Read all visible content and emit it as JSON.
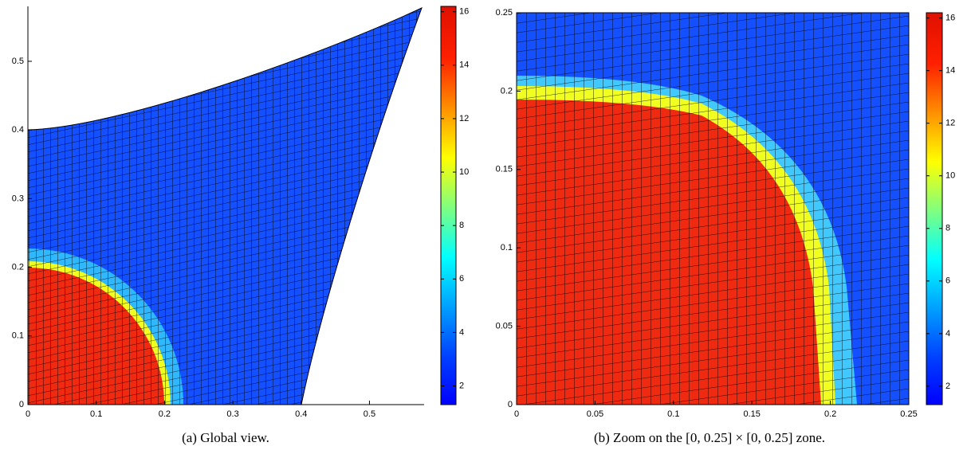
{
  "figures": [
    {
      "caption": "(a) Global view.",
      "xlim": [
        0,
        0.58
      ],
      "ylim": [
        0,
        0.58
      ],
      "xticks": [
        0,
        0.1,
        0.2,
        0.3,
        0.4,
        0.5
      ],
      "yticks": [
        0,
        0.1,
        0.2,
        0.3,
        0.4,
        0.5
      ],
      "colorbar": {
        "lim": [
          1.3,
          16.2
        ],
        "ticks": [
          2,
          4,
          6,
          8,
          10,
          12,
          14,
          16
        ]
      }
    },
    {
      "caption": "(b) Zoom on the [0, 0.25] × [0, 0.25] zone.",
      "xlim": [
        0,
        0.25
      ],
      "ylim": [
        0,
        0.25
      ],
      "xticks": [
        0,
        0.05,
        0.1,
        0.15,
        0.2,
        0.25
      ],
      "yticks": [
        0,
        0.05,
        0.1,
        0.15,
        0.2,
        0.25
      ],
      "colorbar": {
        "lim": [
          1.3,
          16.2
        ],
        "ticks": [
          2,
          4,
          6,
          8,
          10,
          12,
          14,
          16
        ]
      }
    }
  ]
}
